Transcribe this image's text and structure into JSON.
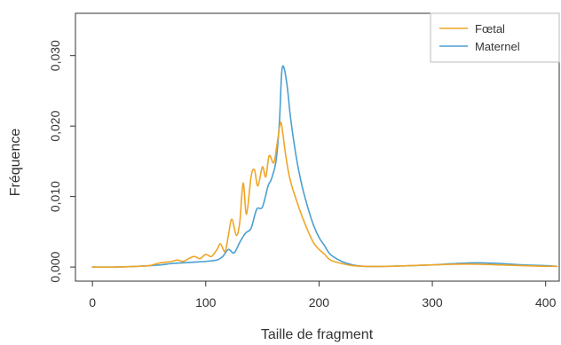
{
  "chart_data": {
    "type": "line",
    "xlabel": "Taille de fragment",
    "ylabel": "Fréquence",
    "xlim": [
      -15,
      412
    ],
    "ylim": [
      -0.002,
      0.036
    ],
    "x_ticks": [
      {
        "value": 0,
        "label": "0"
      },
      {
        "value": 100,
        "label": "100"
      },
      {
        "value": 200,
        "label": "200"
      },
      {
        "value": 300,
        "label": "300"
      },
      {
        "value": 400,
        "label": "400"
      }
    ],
    "y_ticks": [
      {
        "value": 0.0,
        "label": "0,000"
      },
      {
        "value": 0.01,
        "label": "0,010"
      },
      {
        "value": 0.02,
        "label": "0,020"
      },
      {
        "value": 0.03,
        "label": "0,030"
      }
    ],
    "legend_position": "top-right",
    "series": [
      {
        "name": "Fœtal",
        "color": "#f0a526",
        "x": [
          0,
          20,
          40,
          50,
          55,
          60,
          65,
          70,
          75,
          80,
          85,
          90,
          95,
          100,
          105,
          110,
          113,
          117,
          120,
          123,
          127,
          130,
          133,
          136,
          140,
          143,
          146,
          150,
          153,
          156,
          160,
          163,
          166,
          168,
          170,
          173,
          176,
          180,
          185,
          190,
          195,
          200,
          205,
          210,
          220,
          230,
          240,
          260,
          280,
          300,
          320,
          340,
          360,
          380,
          400,
          410
        ],
        "y": [
          0.0,
          0.0,
          0.0001,
          0.0002,
          0.0004,
          0.0006,
          0.0007,
          0.0008,
          0.001,
          0.0008,
          0.0012,
          0.0015,
          0.0012,
          0.0018,
          0.0015,
          0.0025,
          0.0033,
          0.0022,
          0.0045,
          0.0068,
          0.0045,
          0.0063,
          0.0119,
          0.0075,
          0.0128,
          0.0138,
          0.0115,
          0.0142,
          0.0128,
          0.0158,
          0.0148,
          0.0175,
          0.0205,
          0.019,
          0.0165,
          0.0135,
          0.0115,
          0.0095,
          0.0072,
          0.0052,
          0.0035,
          0.0025,
          0.0018,
          0.001,
          0.0005,
          0.0002,
          0.0001,
          0.0001,
          0.0002,
          0.0003,
          0.0004,
          0.0004,
          0.0003,
          0.0002,
          0.0001,
          0.0001
        ]
      },
      {
        "name": "Maternel",
        "color": "#4a9fd0",
        "x": [
          0,
          20,
          40,
          50,
          60,
          70,
          80,
          90,
          100,
          110,
          115,
          120,
          125,
          130,
          135,
          140,
          145,
          150,
          155,
          158,
          162,
          165,
          167,
          169,
          172,
          175,
          180,
          185,
          190,
          195,
          200,
          205,
          210,
          220,
          230,
          240,
          260,
          280,
          300,
          320,
          340,
          360,
          380,
          400,
          410
        ],
        "y": [
          0.0,
          0.0,
          0.0001,
          0.0002,
          0.0003,
          0.0005,
          0.0006,
          0.0007,
          0.0008,
          0.001,
          0.0015,
          0.0025,
          0.002,
          0.0035,
          0.0048,
          0.0055,
          0.0082,
          0.0085,
          0.0115,
          0.0125,
          0.015,
          0.0205,
          0.0275,
          0.0283,
          0.0255,
          0.021,
          0.0155,
          0.0115,
          0.0085,
          0.006,
          0.0042,
          0.003,
          0.0018,
          0.0008,
          0.0003,
          0.0001,
          0.0001,
          0.0002,
          0.0003,
          0.0005,
          0.0006,
          0.0005,
          0.0003,
          0.0002,
          0.0001
        ]
      }
    ]
  }
}
